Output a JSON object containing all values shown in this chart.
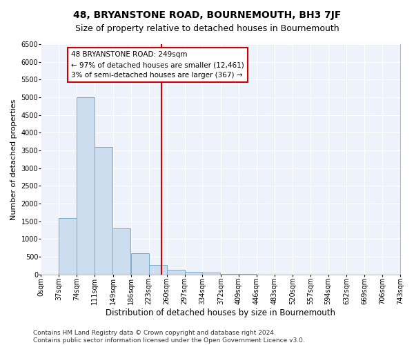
{
  "title": "48, BRYANSTONE ROAD, BOURNEMOUTH, BH3 7JF",
  "subtitle": "Size of property relative to detached houses in Bournemouth",
  "xlabel": "Distribution of detached houses by size in Bournemouth",
  "ylabel": "Number of detached properties",
  "bar_color": "#ccddef",
  "bar_edge_color": "#7aaac8",
  "background_color": "#eef2fa",
  "grid_color": "#ffffff",
  "property_line_x": 249,
  "property_line_color": "#cc0000",
  "annotation_box_color": "#cc0000",
  "annotation_line1": "48 BRYANSTONE ROAD: 249sqm",
  "annotation_line2": "← 97% of detached houses are smaller (12,461)",
  "annotation_line3": "3% of semi-detached houses are larger (367) →",
  "bin_width": 37,
  "bin_starts": [
    0,
    37,
    74,
    111,
    148,
    186,
    223,
    260,
    297,
    334,
    372,
    409,
    446,
    483,
    520,
    557,
    594,
    632,
    669,
    706
  ],
  "bar_heights": [
    0,
    1600,
    5000,
    3600,
    1300,
    600,
    270,
    130,
    80,
    50,
    20,
    10,
    5,
    3,
    2,
    1,
    1,
    0,
    0,
    0
  ],
  "ylim": [
    0,
    6500
  ],
  "xlim": [
    0,
    743
  ],
  "tick_labels": [
    "0sqm",
    "37sqm",
    "74sqm",
    "111sqm",
    "149sqm",
    "186sqm",
    "223sqm",
    "260sqm",
    "297sqm",
    "334sqm",
    "372sqm",
    "409sqm",
    "446sqm",
    "483sqm",
    "520sqm",
    "557sqm",
    "594sqm",
    "632sqm",
    "669sqm",
    "706sqm",
    "743sqm"
  ],
  "tick_positions": [
    0,
    37,
    74,
    111,
    149,
    186,
    223,
    260,
    297,
    334,
    372,
    409,
    446,
    483,
    520,
    557,
    594,
    632,
    669,
    706,
    743
  ],
  "yticks": [
    0,
    500,
    1000,
    1500,
    2000,
    2500,
    3000,
    3500,
    4000,
    4500,
    5000,
    5500,
    6000,
    6500
  ],
  "footer_text": "Contains HM Land Registry data © Crown copyright and database right 2024.\nContains public sector information licensed under the Open Government Licence v3.0.",
  "title_fontsize": 10,
  "subtitle_fontsize": 9,
  "annotation_fontsize": 7.5,
  "tick_fontsize": 7,
  "ylabel_fontsize": 8,
  "xlabel_fontsize": 8.5,
  "footer_fontsize": 6.5
}
